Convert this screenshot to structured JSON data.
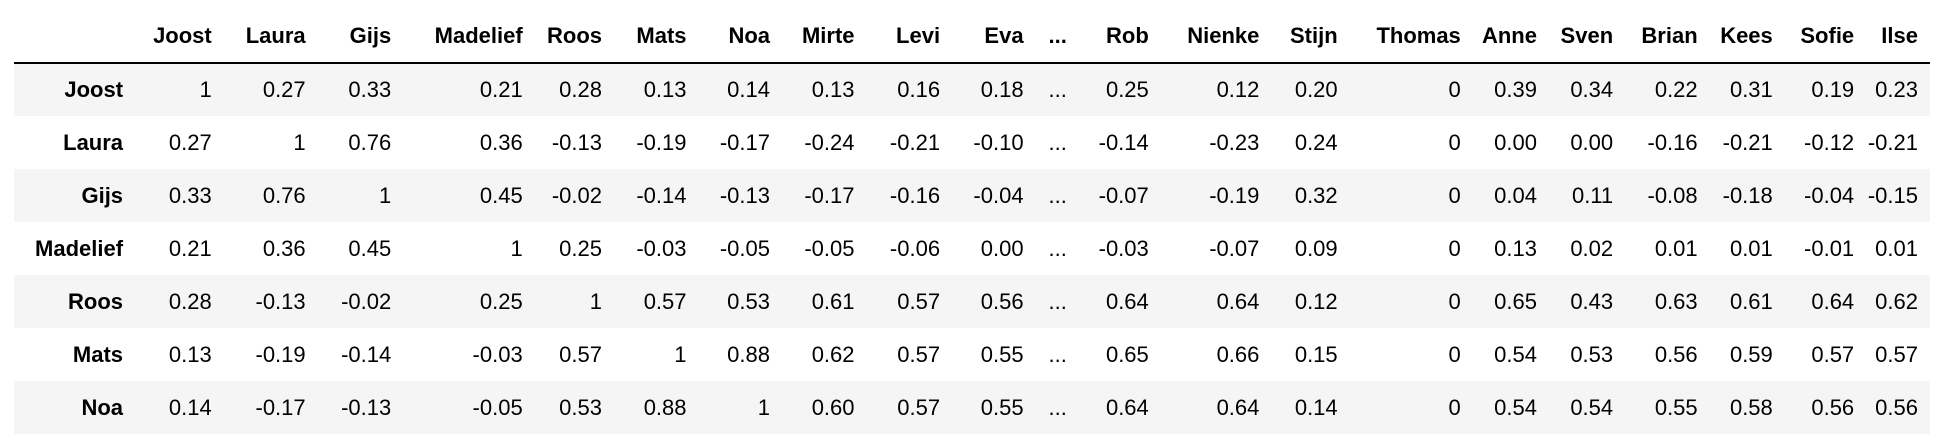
{
  "table": {
    "columns": [
      "Joost",
      "Laura",
      "Gijs",
      "Madelief",
      "Roos",
      "Mats",
      "Noa",
      "Mirte",
      "Levi",
      "Eva",
      "...",
      "Rob",
      "Nienke",
      "Stijn",
      "Thomas",
      "Anne",
      "Sven",
      "Brian",
      "Kees",
      "Sofie",
      "Ilse"
    ],
    "rows": [
      {
        "label": "Joost",
        "cells": [
          "1",
          "0.27",
          "0.33",
          "0.21",
          "0.28",
          "0.13",
          "0.14",
          "0.13",
          "0.16",
          "0.18",
          "...",
          "0.25",
          "0.12",
          "0.20",
          "0",
          "0.39",
          "0.34",
          "0.22",
          "0.31",
          "0.19",
          "0.23"
        ]
      },
      {
        "label": "Laura",
        "cells": [
          "0.27",
          "1",
          "0.76",
          "0.36",
          "-0.13",
          "-0.19",
          "-0.17",
          "-0.24",
          "-0.21",
          "-0.10",
          "...",
          "-0.14",
          "-0.23",
          "0.24",
          "0",
          "0.00",
          "0.00",
          "-0.16",
          "-0.21",
          "-0.12",
          "-0.21"
        ]
      },
      {
        "label": "Gijs",
        "cells": [
          "0.33",
          "0.76",
          "1",
          "0.45",
          "-0.02",
          "-0.14",
          "-0.13",
          "-0.17",
          "-0.16",
          "-0.04",
          "...",
          "-0.07",
          "-0.19",
          "0.32",
          "0",
          "0.04",
          "0.11",
          "-0.08",
          "-0.18",
          "-0.04",
          "-0.15"
        ]
      },
      {
        "label": "Madelief",
        "cells": [
          "0.21",
          "0.36",
          "0.45",
          "1",
          "0.25",
          "-0.03",
          "-0.05",
          "-0.05",
          "-0.06",
          "0.00",
          "...",
          "-0.03",
          "-0.07",
          "0.09",
          "0",
          "0.13",
          "0.02",
          "0.01",
          "0.01",
          "-0.01",
          "0.01"
        ]
      },
      {
        "label": "Roos",
        "cells": [
          "0.28",
          "-0.13",
          "-0.02",
          "0.25",
          "1",
          "0.57",
          "0.53",
          "0.61",
          "0.57",
          "0.56",
          "...",
          "0.64",
          "0.64",
          "0.12",
          "0",
          "0.65",
          "0.43",
          "0.63",
          "0.61",
          "0.64",
          "0.62"
        ]
      },
      {
        "label": "Mats",
        "cells": [
          "0.13",
          "-0.19",
          "-0.14",
          "-0.03",
          "0.57",
          "1",
          "0.88",
          "0.62",
          "0.57",
          "0.55",
          "...",
          "0.65",
          "0.66",
          "0.15",
          "0",
          "0.54",
          "0.53",
          "0.56",
          "0.59",
          "0.57",
          "0.57"
        ]
      },
      {
        "label": "Noa",
        "cells": [
          "0.14",
          "-0.17",
          "-0.13",
          "-0.05",
          "0.53",
          "0.88",
          "1",
          "0.60",
          "0.57",
          "0.55",
          "...",
          "0.64",
          "0.64",
          "0.14",
          "0",
          "0.54",
          "0.54",
          "0.55",
          "0.58",
          "0.56",
          "0.56"
        ]
      }
    ]
  }
}
